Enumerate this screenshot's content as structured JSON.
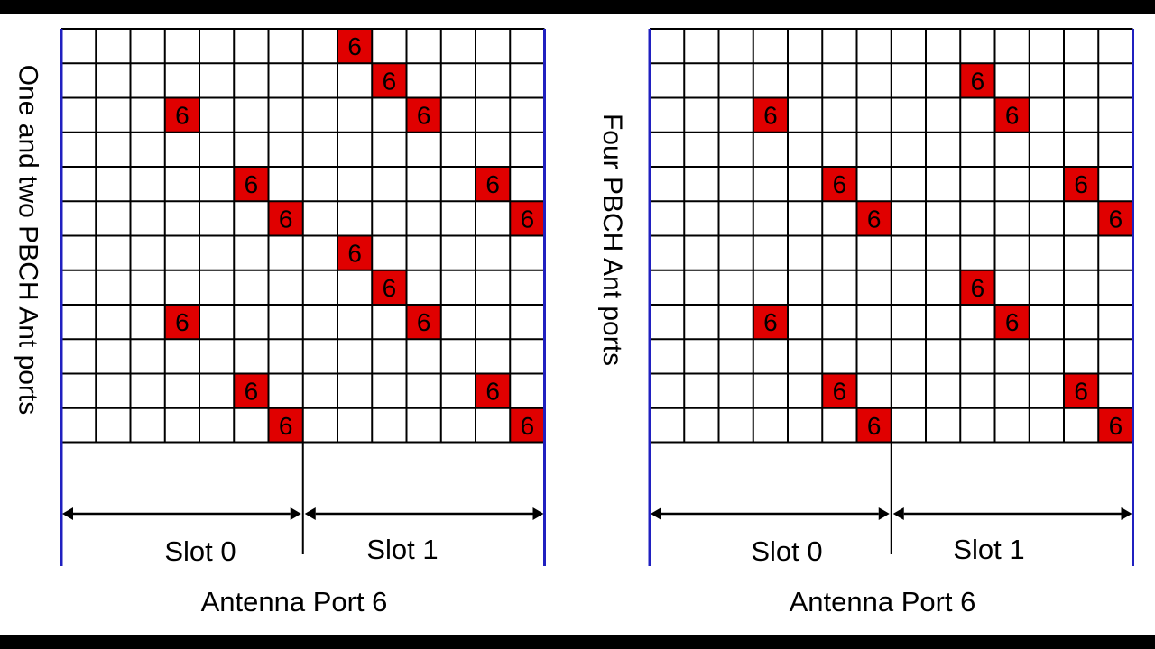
{
  "bars": {
    "color": "#000000"
  },
  "colors": {
    "re_fill": "#e00000",
    "grid": "#000000",
    "edge": "#2020c0"
  },
  "grid": {
    "rows": 12,
    "cols": 14
  },
  "panels": [
    {
      "id": "left",
      "side_label": "One and two PBCH Ant ports",
      "slot0_label": "Slot 0",
      "slot1_label": "Slot 1",
      "port_label": "Antenna Port 6",
      "re_text": "6",
      "reference_signals": [
        {
          "row": 0,
          "col": 8
        },
        {
          "row": 1,
          "col": 9
        },
        {
          "row": 2,
          "col": 3
        },
        {
          "row": 2,
          "col": 10
        },
        {
          "row": 4,
          "col": 5
        },
        {
          "row": 4,
          "col": 12
        },
        {
          "row": 5,
          "col": 6
        },
        {
          "row": 5,
          "col": 13
        },
        {
          "row": 6,
          "col": 8
        },
        {
          "row": 7,
          "col": 9
        },
        {
          "row": 8,
          "col": 3
        },
        {
          "row": 8,
          "col": 10
        },
        {
          "row": 10,
          "col": 5
        },
        {
          "row": 10,
          "col": 12
        },
        {
          "row": 11,
          "col": 6
        },
        {
          "row": 11,
          "col": 13
        }
      ]
    },
    {
      "id": "right",
      "side_label": "Four PBCH Ant ports",
      "slot0_label": "Slot 0",
      "slot1_label": "Slot 1",
      "port_label": "Antenna Port 6",
      "re_text": "6",
      "reference_signals": [
        {
          "row": 1,
          "col": 9
        },
        {
          "row": 2,
          "col": 3
        },
        {
          "row": 2,
          "col": 10
        },
        {
          "row": 4,
          "col": 5
        },
        {
          "row": 4,
          "col": 12
        },
        {
          "row": 5,
          "col": 6
        },
        {
          "row": 5,
          "col": 13
        },
        {
          "row": 7,
          "col": 9
        },
        {
          "row": 8,
          "col": 3
        },
        {
          "row": 8,
          "col": 10
        },
        {
          "row": 10,
          "col": 5
        },
        {
          "row": 10,
          "col": 12
        },
        {
          "row": 11,
          "col": 6
        },
        {
          "row": 11,
          "col": 13
        }
      ]
    }
  ]
}
